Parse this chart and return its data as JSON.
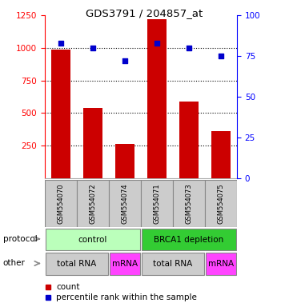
{
  "title": "GDS3791 / 204857_at",
  "samples": [
    "GSM554070",
    "GSM554072",
    "GSM554074",
    "GSM554071",
    "GSM554073",
    "GSM554075"
  ],
  "counts": [
    990,
    540,
    260,
    1220,
    590,
    360
  ],
  "percentile_ranks": [
    83,
    80,
    72,
    83,
    80,
    75
  ],
  "ylim_left": [
    0,
    1250
  ],
  "ylim_right": [
    0,
    100
  ],
  "yticks_left": [
    250,
    500,
    750,
    1000,
    1250
  ],
  "yticks_right": [
    0,
    25,
    50,
    75,
    100
  ],
  "hlines": [
    250,
    500,
    750,
    1000
  ],
  "bar_color": "#cc0000",
  "dot_color": "#0000cc",
  "protocol_labels": [
    {
      "text": "control",
      "start": 0,
      "end": 3,
      "color": "#bbffbb"
    },
    {
      "text": "BRCA1 depletion",
      "start": 3,
      "end": 6,
      "color": "#33cc33"
    }
  ],
  "other_labels": [
    {
      "text": "total RNA",
      "start": 0,
      "end": 2,
      "color": "#cccccc"
    },
    {
      "text": "mRNA",
      "start": 2,
      "end": 3,
      "color": "#ff44ff"
    },
    {
      "text": "total RNA",
      "start": 3,
      "end": 5,
      "color": "#cccccc"
    },
    {
      "text": "mRNA",
      "start": 5,
      "end": 6,
      "color": "#ff44ff"
    }
  ],
  "sample_box_color": "#cccccc",
  "protocol_row_label": "protocol",
  "other_row_label": "other",
  "bar_color_legend": "#cc0000",
  "dot_color_legend": "#0000cc"
}
